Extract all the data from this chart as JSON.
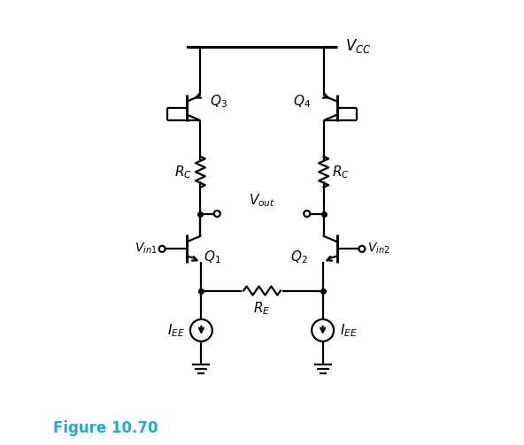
{
  "fig_width": 5.92,
  "fig_height": 5.03,
  "dpi": 100,
  "bg_color": "#ffffff",
  "line_color": "#000000",
  "label_color": "#22aacc",
  "figure_label": "Figure 10.70"
}
